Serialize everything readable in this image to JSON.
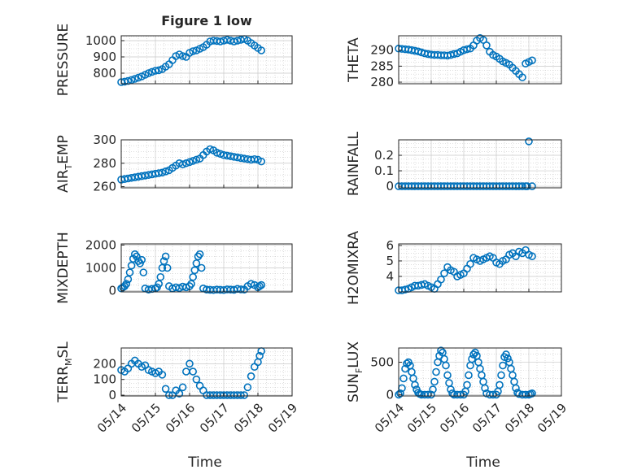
{
  "figure": {
    "title": "Figure 1 low",
    "xlabel_left": "Time",
    "xlabel_right": "Time"
  },
  "colors": {
    "marker": "#0072BD",
    "grid": "#c8c8c8",
    "axis": "#262626"
  },
  "chart_data": [
    {
      "type": "scatter",
      "panel": "PRESSURE",
      "ylabel": "PRESSURE",
      "xticks": [
        "05/14",
        "05/15",
        "05/16",
        "05/17",
        "05/18",
        "05/19"
      ],
      "yticks": [
        800,
        900,
        1000
      ],
      "ylim": [
        735,
        1030
      ],
      "xlim": [
        0,
        5
      ],
      "grid": true,
      "x": [
        0,
        0.1,
        0.2,
        0.3,
        0.4,
        0.5,
        0.6,
        0.7,
        0.8,
        0.9,
        1.0,
        1.1,
        1.2,
        1.3,
        1.4,
        1.5,
        1.6,
        1.7,
        1.8,
        1.9,
        2.0,
        2.1,
        2.2,
        2.3,
        2.4,
        2.5,
        2.6,
        2.7,
        2.8,
        2.9,
        3.0,
        3.1,
        3.2,
        3.3,
        3.4,
        3.5,
        3.6,
        3.7,
        3.8,
        3.9,
        4.0,
        4.1
      ],
      "y": [
        745,
        748,
        752,
        758,
        765,
        772,
        780,
        790,
        800,
        808,
        815,
        818,
        825,
        840,
        855,
        880,
        905,
        915,
        905,
        900,
        925,
        935,
        940,
        950,
        960,
        975,
        995,
        1000,
        998,
        995,
        1000,
        1005,
        1000,
        995,
        1000,
        1005,
        1010,
        1000,
        985,
        970,
        955,
        940
      ]
    },
    {
      "type": "scatter",
      "panel": "THETA",
      "ylabel": "THETA",
      "xticks": [
        "05/14",
        "05/15",
        "05/16",
        "05/17",
        "05/18",
        "05/19"
      ],
      "yticks": [
        280,
        285,
        290
      ],
      "ylim": [
        279.5,
        294.5
      ],
      "xlim": [
        0,
        5
      ],
      "grid": true,
      "x": [
        0,
        0.1,
        0.2,
        0.3,
        0.4,
        0.5,
        0.6,
        0.7,
        0.8,
        0.9,
        1.0,
        1.1,
        1.2,
        1.3,
        1.4,
        1.5,
        1.6,
        1.7,
        1.8,
        1.9,
        2.0,
        2.1,
        2.2,
        2.3,
        2.4,
        2.5,
        2.6,
        2.7,
        2.8,
        2.9,
        3.0,
        3.1,
        3.2,
        3.3,
        3.4,
        3.5,
        3.6,
        3.7,
        3.8,
        3.9,
        4.0,
        4.1
      ],
      "y": [
        290.5,
        290.4,
        290.3,
        290.2,
        290.0,
        289.8,
        289.6,
        289.3,
        289.0,
        288.8,
        288.6,
        288.5,
        288.5,
        288.4,
        288.4,
        288.3,
        288.5,
        288.8,
        289.0,
        289.5,
        290.0,
        290.3,
        290.5,
        291.5,
        293.0,
        293.8,
        293.2,
        291.5,
        289.5,
        288.5,
        288.0,
        287.3,
        286.5,
        286.0,
        285.5,
        284.5,
        283.5,
        282.5,
        281.5,
        285.8,
        286.3,
        286.8
      ]
    },
    {
      "type": "scatter",
      "panel": "AIR_TEMP",
      "ylabel": "AIR",
      "ylabel_sub": "T",
      "ylabel_rest": "EMP",
      "xticks": [
        "05/14",
        "05/15",
        "05/16",
        "05/17",
        "05/18",
        "05/19"
      ],
      "yticks": [
        260,
        280,
        300
      ],
      "ylim": [
        259,
        300
      ],
      "xlim": [
        0,
        5
      ],
      "grid": true,
      "x": [
        0,
        0.1,
        0.2,
        0.3,
        0.4,
        0.5,
        0.6,
        0.7,
        0.8,
        0.9,
        1.0,
        1.1,
        1.2,
        1.3,
        1.4,
        1.5,
        1.6,
        1.7,
        1.8,
        1.9,
        2.0,
        2.1,
        2.2,
        2.3,
        2.4,
        2.5,
        2.6,
        2.7,
        2.8,
        2.9,
        3.0,
        3.1,
        3.2,
        3.3,
        3.4,
        3.5,
        3.6,
        3.7,
        3.8,
        3.9,
        4.0,
        4.1
      ],
      "y": [
        266,
        266.5,
        267,
        267.5,
        268,
        268.5,
        269,
        269.5,
        270,
        270.5,
        271,
        271.5,
        272,
        273,
        274,
        276,
        278,
        280,
        279,
        280,
        281,
        282,
        283,
        284,
        287,
        290,
        292,
        291,
        289,
        288,
        287,
        286.5,
        286,
        285.5,
        285,
        284.5,
        284,
        283.5,
        283,
        283.5,
        283,
        281.5
      ]
    },
    {
      "type": "scatter",
      "panel": "RAINFALL",
      "ylabel": "RAINFALL",
      "xticks": [
        "05/14",
        "05/15",
        "05/16",
        "05/17",
        "05/18",
        "05/19"
      ],
      "yticks": [
        0,
        0.1,
        0.2
      ],
      "ytick_labels": [
        "0",
        "0.1",
        "0.2"
      ],
      "ylim": [
        -0.01,
        0.3
      ],
      "xlim": [
        0,
        5
      ],
      "grid": true,
      "x": [
        0,
        0.1,
        0.2,
        0.3,
        0.4,
        0.5,
        0.6,
        0.7,
        0.8,
        0.9,
        1.0,
        1.1,
        1.2,
        1.3,
        1.4,
        1.5,
        1.6,
        1.7,
        1.8,
        1.9,
        2.0,
        2.1,
        2.2,
        2.3,
        2.4,
        2.5,
        2.6,
        2.7,
        2.8,
        2.9,
        3.0,
        3.1,
        3.2,
        3.3,
        3.4,
        3.5,
        3.6,
        3.7,
        3.8,
        3.9,
        3.95,
        4.0,
        4.1
      ],
      "y": [
        0,
        0,
        0,
        0,
        0,
        0,
        0,
        0,
        0,
        0,
        0,
        0,
        0,
        0,
        0,
        0,
        0,
        0,
        0,
        0,
        0,
        0,
        0,
        0,
        0,
        0,
        0,
        0,
        0,
        0,
        0,
        0,
        0,
        0,
        0,
        0,
        0,
        0,
        0,
        0,
        0,
        0.29,
        0
      ]
    },
    {
      "type": "scatter",
      "panel": "MIXDEPTH",
      "ylabel": "MIXDEPTH",
      "xticks": [
        "05/14",
        "05/15",
        "05/16",
        "05/17",
        "05/18",
        "05/19"
      ],
      "yticks": [
        0,
        1000,
        2000
      ],
      "ylim": [
        -50,
        2050
      ],
      "xlim": [
        0,
        5
      ],
      "grid": true,
      "x": [
        0,
        0.05,
        0.1,
        0.15,
        0.2,
        0.25,
        0.3,
        0.35,
        0.4,
        0.45,
        0.5,
        0.55,
        0.6,
        0.65,
        0.7,
        0.8,
        0.9,
        1.0,
        1.05,
        1.1,
        1.15,
        1.2,
        1.25,
        1.3,
        1.35,
        1.4,
        1.5,
        1.6,
        1.7,
        1.8,
        1.9,
        2.0,
        2.05,
        2.1,
        2.15,
        2.2,
        2.25,
        2.3,
        2.35,
        2.4,
        2.5,
        2.6,
        2.7,
        2.8,
        2.9,
        3.0,
        3.1,
        3.2,
        3.3,
        3.4,
        3.5,
        3.6,
        3.7,
        3.8,
        3.9,
        4.0,
        4.05,
        4.1
      ],
      "y": [
        100,
        150,
        200,
        300,
        500,
        800,
        1100,
        1400,
        1600,
        1500,
        1300,
        1200,
        1350,
        800,
        100,
        50,
        80,
        100,
        150,
        300,
        600,
        1000,
        1300,
        1500,
        1000,
        200,
        100,
        150,
        120,
        180,
        150,
        200,
        300,
        600,
        900,
        1200,
        1500,
        1600,
        1000,
        100,
        50,
        40,
        30,
        50,
        40,
        30,
        60,
        50,
        40,
        80,
        60,
        50,
        200,
        300,
        250,
        150,
        200,
        250
      ]
    },
    {
      "type": "scatter",
      "panel": "H2OMIXRA",
      "ylabel": "H2OMIXRA",
      "xticks": [
        "05/14",
        "05/15",
        "05/16",
        "05/17",
        "05/18",
        "05/19"
      ],
      "yticks": [
        4,
        5,
        6
      ],
      "ylim": [
        3,
        6.1
      ],
      "xlim": [
        0,
        5
      ],
      "grid": true,
      "x": [
        0,
        0.1,
        0.2,
        0.3,
        0.4,
        0.5,
        0.6,
        0.7,
        0.8,
        0.9,
        1.0,
        1.1,
        1.2,
        1.3,
        1.4,
        1.5,
        1.6,
        1.7,
        1.8,
        1.9,
        2.0,
        2.1,
        2.2,
        2.3,
        2.4,
        2.5,
        2.6,
        2.7,
        2.8,
        2.9,
        3.0,
        3.1,
        3.2,
        3.3,
        3.4,
        3.5,
        3.6,
        3.7,
        3.8,
        3.9,
        4.0,
        4.1
      ],
      "y": [
        3.1,
        3.1,
        3.15,
        3.2,
        3.3,
        3.4,
        3.4,
        3.45,
        3.5,
        3.4,
        3.3,
        3.2,
        3.5,
        3.8,
        4.2,
        4.6,
        4.4,
        4.3,
        4.0,
        4.1,
        4.2,
        4.5,
        4.8,
        5.2,
        5.1,
        5.0,
        5.1,
        5.2,
        5.3,
        5.2,
        4.9,
        4.8,
        5.0,
        5.1,
        5.4,
        5.5,
        5.3,
        5.6,
        5.5,
        5.7,
        5.4,
        5.3
      ]
    },
    {
      "type": "scatter",
      "panel": "TERR_MSL",
      "ylabel": "TERR",
      "ylabel_sub": "M",
      "ylabel_rest": "SL",
      "xticks": [
        "05/14",
        "05/15",
        "05/16",
        "05/17",
        "05/18",
        "05/19"
      ],
      "yticks": [
        0,
        100,
        200
      ],
      "ylim": [
        -5,
        300
      ],
      "xlim": [
        0,
        5
      ],
      "grid": true,
      "x": [
        0,
        0.1,
        0.2,
        0.3,
        0.4,
        0.5,
        0.6,
        0.7,
        0.8,
        0.9,
        1.0,
        1.1,
        1.2,
        1.3,
        1.4,
        1.5,
        1.6,
        1.7,
        1.8,
        1.9,
        2.0,
        2.1,
        2.2,
        2.3,
        2.4,
        2.5,
        2.6,
        2.7,
        2.8,
        2.9,
        3.0,
        3.1,
        3.2,
        3.3,
        3.4,
        3.5,
        3.6,
        3.7,
        3.8,
        3.9,
        4.0,
        4.05,
        4.1
      ],
      "y": [
        160,
        150,
        170,
        200,
        220,
        200,
        180,
        190,
        160,
        150,
        140,
        150,
        130,
        40,
        0,
        0,
        30,
        10,
        50,
        150,
        200,
        150,
        100,
        60,
        30,
        0,
        0,
        0,
        0,
        0,
        0,
        0,
        0,
        0,
        0,
        0,
        0,
        50,
        120,
        180,
        210,
        250,
        280
      ]
    },
    {
      "type": "scatter",
      "panel": "SUN_FLUX",
      "ylabel": "SUN",
      "ylabel_sub": "F",
      "ylabel_rest": "LUX",
      "xticks": [
        "05/14",
        "05/15",
        "05/16",
        "05/17",
        "05/18",
        "05/19"
      ],
      "yticks": [
        0,
        500
      ],
      "ylim": [
        -20,
        720
      ],
      "xlim": [
        0,
        5
      ],
      "grid": true,
      "x": [
        0,
        0.05,
        0.1,
        0.15,
        0.2,
        0.25,
        0.3,
        0.35,
        0.4,
        0.45,
        0.5,
        0.55,
        0.6,
        0.65,
        0.7,
        0.8,
        0.9,
        1.0,
        1.05,
        1.1,
        1.15,
        1.2,
        1.25,
        1.3,
        1.35,
        1.4,
        1.45,
        1.5,
        1.55,
        1.6,
        1.65,
        1.7,
        1.8,
        1.9,
        2.0,
        2.05,
        2.1,
        2.15,
        2.2,
        2.25,
        2.3,
        2.35,
        2.4,
        2.45,
        2.5,
        2.55,
        2.6,
        2.65,
        2.7,
        2.8,
        2.9,
        3.0,
        3.05,
        3.1,
        3.15,
        3.2,
        3.25,
        3.3,
        3.35,
        3.4,
        3.45,
        3.5,
        3.55,
        3.6,
        3.65,
        3.7,
        3.8,
        3.9,
        4.0,
        4.05,
        4.1
      ],
      "y": [
        0,
        20,
        100,
        250,
        400,
        480,
        500,
        450,
        350,
        250,
        150,
        80,
        30,
        10,
        0,
        0,
        0,
        0,
        80,
        200,
        350,
        500,
        600,
        680,
        650,
        550,
        450,
        300,
        180,
        80,
        20,
        0,
        0,
        0,
        0,
        50,
        150,
        300,
        450,
        550,
        620,
        650,
        600,
        500,
        400,
        300,
        200,
        100,
        20,
        0,
        0,
        0,
        50,
        150,
        300,
        450,
        580,
        620,
        560,
        500,
        400,
        300,
        200,
        100,
        30,
        10,
        0,
        0,
        0,
        10,
        20
      ]
    }
  ]
}
